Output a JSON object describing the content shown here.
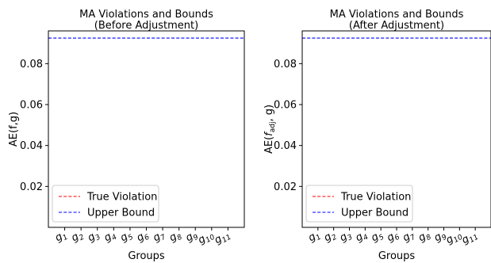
{
  "chart_data": [
    {
      "type": "line",
      "title": "MA Violations and Bounds",
      "subtitle": "(Before Adjustment)",
      "xlabel": "Groups",
      "ylabel": "AE(f,g)",
      "categories": [
        "1",
        "2",
        "3",
        "4",
        "5",
        "6",
        "7",
        "8",
        "9",
        "10",
        "11"
      ],
      "ylim": [
        0,
        0.096
      ],
      "yticks": [
        "0.02",
        "0.04",
        "0.06",
        "0.08"
      ],
      "series": [
        {
          "name": "True Violation",
          "color": "#ff0000",
          "style": "dashed",
          "values": [
            0,
            0,
            0,
            0,
            0,
            0,
            0,
            0,
            0,
            0,
            0
          ]
        },
        {
          "name": "Upper Bound",
          "color": "#0000ff",
          "style": "dashed",
          "values": [
            0.0925,
            0.0925,
            0.0925,
            0.0925,
            0.0925,
            0.0925,
            0.0925,
            0.0925,
            0.0925,
            0.0925,
            0.0925
          ]
        }
      ],
      "legend": "lower-left",
      "grid": false
    },
    {
      "type": "line",
      "title": "MA Violations and Bounds",
      "subtitle": "(After Adjustment)",
      "xlabel": "Groups",
      "ylabel": "AE(f_adj, g)",
      "categories": [
        "1",
        "2",
        "3",
        "4",
        "5",
        "6",
        "7",
        "8",
        "9",
        "10",
        "11"
      ],
      "ylim": [
        0,
        0.096
      ],
      "yticks": [
        "0.02",
        "0.04",
        "0.06",
        "0.08"
      ],
      "series": [
        {
          "name": "True Violation",
          "color": "#ff0000",
          "style": "dashed",
          "values": [
            0,
            0,
            0,
            0,
            0,
            0,
            0,
            0,
            0,
            0,
            0
          ]
        },
        {
          "name": "Upper Bound",
          "color": "#0000ff",
          "style": "dashed",
          "values": [
            0.0925,
            0.0925,
            0.0925,
            0.0925,
            0.0925,
            0.0925,
            0.0925,
            0.0925,
            0.0925,
            0.0925,
            0.0925
          ]
        }
      ],
      "legend": "lower-left",
      "grid": false
    }
  ]
}
